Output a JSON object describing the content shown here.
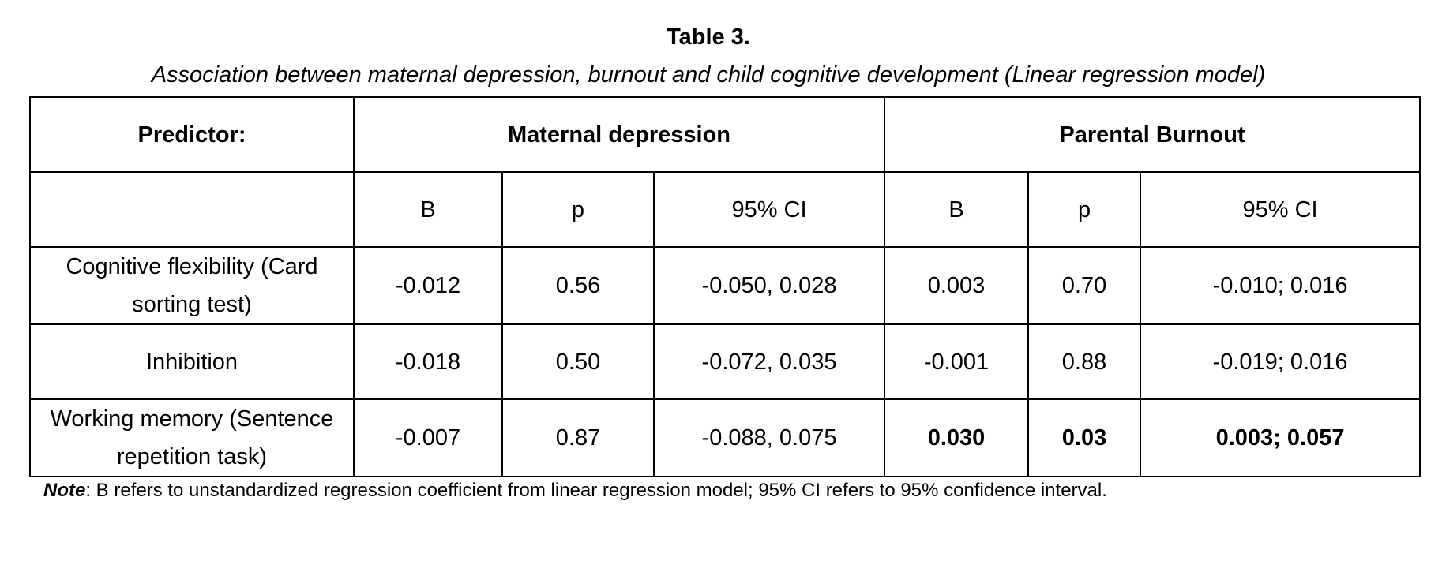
{
  "table_title": "Table 3.",
  "table_caption": "Association between maternal depression, burnout and child cognitive development (Linear regression model)",
  "header": {
    "predictor": "Predictor:",
    "group1": "Maternal depression",
    "group2": "Parental Burnout"
  },
  "subheader": {
    "blank": "",
    "cols": [
      "B",
      "p",
      "95% CI",
      "B",
      "p",
      "95% CI"
    ]
  },
  "rows": [
    {
      "predictor": "Cognitive flexibility (Card sorting test)",
      "cells": [
        "-0.012",
        "0.56",
        "-0.050, 0.028",
        "0.003",
        "0.70",
        "-0.010; 0.016"
      ],
      "bold_cells": [
        false,
        false,
        false,
        false,
        false,
        false
      ]
    },
    {
      "predictor": "Inhibition",
      "cells": [
        "-0.018",
        "0.50",
        "-0.072, 0.035",
        "-0.001",
        "0.88",
        "-0.019; 0.016"
      ],
      "bold_cells": [
        false,
        false,
        false,
        false,
        false,
        false
      ]
    },
    {
      "predictor": "Working memory (Sentence repetition task)",
      "cells": [
        "-0.007",
        "0.87",
        "-0.088, 0.075",
        "0.030",
        "0.03",
        "0.003; 0.057"
      ],
      "bold_cells": [
        false,
        false,
        false,
        true,
        true,
        true
      ]
    }
  ],
  "note": {
    "label": "Note",
    "text": ": B refers to unstandardized regression coefficient from linear regression model; 95% CI refers to 95% confidence interval."
  }
}
